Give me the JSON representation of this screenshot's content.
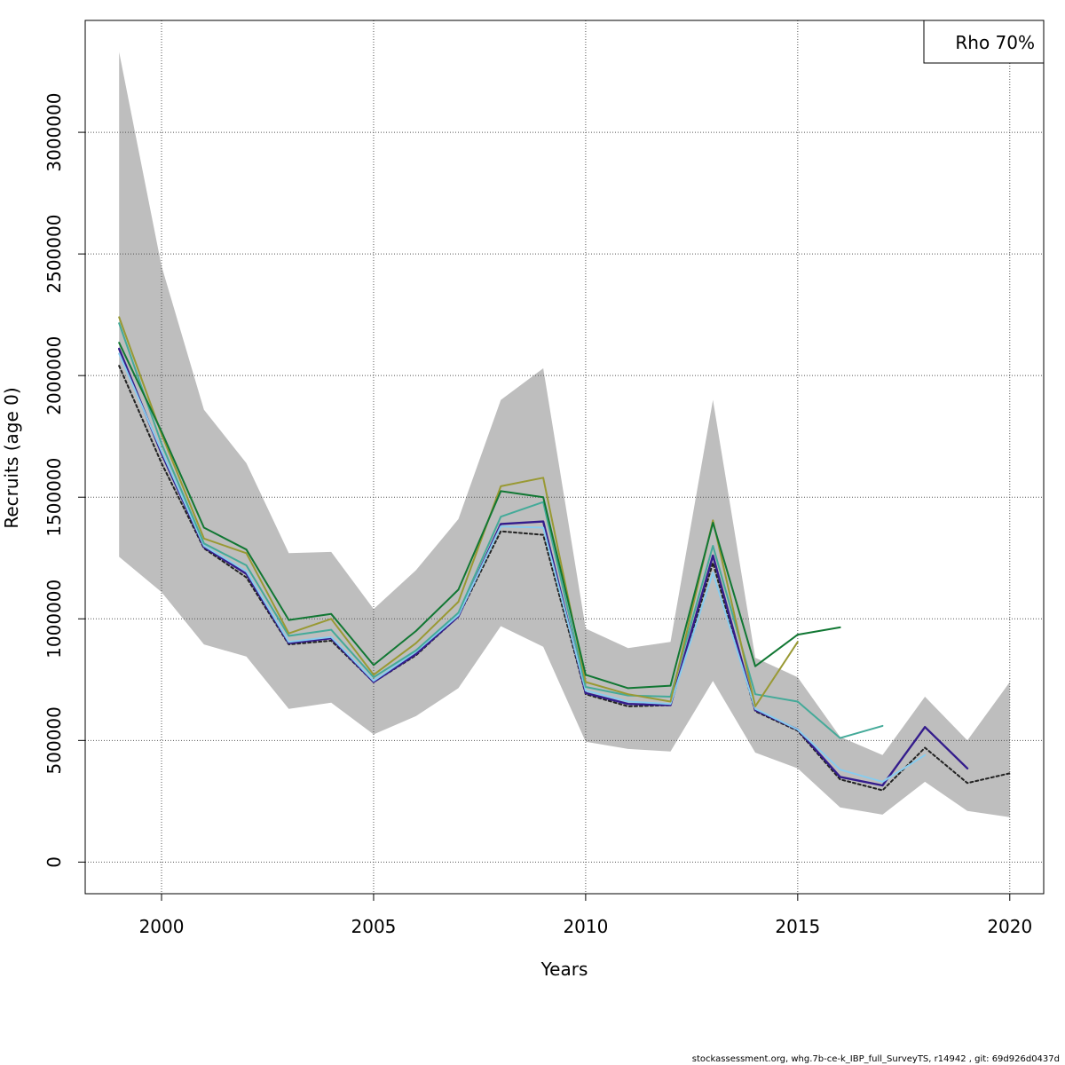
{
  "chart_data": {
    "type": "line",
    "xlabel": "Years",
    "ylabel": "Recruits (age 0)",
    "xlim": [
      1998.2,
      2020.8
    ],
    "ylim": [
      -130000,
      3460000
    ],
    "x_ticks": [
      2000,
      2005,
      2010,
      2015,
      2020
    ],
    "y_ticks": [
      0,
      500000,
      1000000,
      1500000,
      2000000,
      2500000,
      3000000
    ],
    "grid": true,
    "legend": {
      "position": "top-right",
      "text": "Rho 70%"
    },
    "confidence_band": {
      "color": "#bebebe",
      "x": [
        1999,
        2000,
        2001,
        2002,
        2003,
        2004,
        2005,
        2006,
        2007,
        2008,
        2009,
        2010,
        2011,
        2012,
        2013,
        2014,
        2015,
        2016,
        2017,
        2018,
        2019,
        2020
      ],
      "upper": [
        3330000,
        2450000,
        1860000,
        1640000,
        1270000,
        1275000,
        1040000,
        1200000,
        1410000,
        1900000,
        2030000,
        960000,
        880000,
        905000,
        1900000,
        840000,
        760000,
        515000,
        440000,
        680000,
        500000,
        740000
      ],
      "lower": [
        1255000,
        1110000,
        895000,
        845000,
        630000,
        655000,
        525000,
        600000,
        715000,
        970000,
        885000,
        495000,
        465000,
        455000,
        745000,
        450000,
        385000,
        225000,
        195000,
        330000,
        210000,
        185000
      ]
    },
    "series": [
      {
        "color": "#222222",
        "dashed": true,
        "width": 2,
        "x": [
          1999,
          2000,
          2001,
          2002,
          2003,
          2004,
          2005,
          2006,
          2007,
          2008,
          2009,
          2010,
          2011,
          2012,
          2013,
          2014,
          2015,
          2016,
          2017,
          2018,
          2019,
          2020
        ],
        "values": [
          2040000,
          1640000,
          1290000,
          1170000,
          895000,
          910000,
          740000,
          850000,
          1010000,
          1360000,
          1345000,
          690000,
          640000,
          645000,
          1230000,
          620000,
          540000,
          340000,
          295000,
          470000,
          325000,
          365000
        ]
      },
      {
        "color": "#341c8c",
        "dashed": false,
        "width": 2.4,
        "x": [
          1999,
          2000,
          2001,
          2002,
          2003,
          2004,
          2005,
          2006,
          2007,
          2008,
          2009,
          2010,
          2011,
          2012,
          2013,
          2014,
          2015,
          2016,
          2017,
          2018,
          2019
        ],
        "values": [
          2110000,
          1680000,
          1295000,
          1185000,
          900000,
          920000,
          740000,
          855000,
          1010000,
          1390000,
          1400000,
          695000,
          650000,
          645000,
          1260000,
          625000,
          545000,
          350000,
          315000,
          555000,
          385000
        ]
      },
      {
        "color": "#88ccee",
        "dashed": false,
        "width": 2,
        "x": [
          1999,
          2000,
          2001,
          2002,
          2003,
          2004,
          2005,
          2006,
          2007,
          2008,
          2009,
          2010,
          2011,
          2012,
          2013,
          2014,
          2015,
          2016,
          2017,
          2018
        ],
        "values": [
          2090000,
          1690000,
          1300000,
          1195000,
          905000,
          925000,
          745000,
          865000,
          1015000,
          1380000,
          1375000,
          705000,
          660000,
          650000,
          1190000,
          630000,
          545000,
          380000,
          330000,
          440000
        ]
      },
      {
        "color": "#44aa99",
        "dashed": false,
        "width": 2,
        "x": [
          1999,
          2000,
          2001,
          2002,
          2003,
          2004,
          2005,
          2006,
          2007,
          2008,
          2009,
          2010,
          2011,
          2012,
          2013,
          2014,
          2015,
          2016,
          2017
        ],
        "values": [
          2215000,
          1720000,
          1310000,
          1220000,
          930000,
          955000,
          760000,
          870000,
          1025000,
          1420000,
          1480000,
          720000,
          685000,
          680000,
          1300000,
          690000,
          660000,
          510000,
          560000
        ]
      },
      {
        "color": "#999933",
        "dashed": false,
        "width": 2,
        "x": [
          1999,
          2000,
          2001,
          2002,
          2003,
          2004,
          2005,
          2006,
          2007,
          2008,
          2009,
          2010,
          2011,
          2012,
          2013,
          2014,
          2015
        ],
        "values": [
          2240000,
          1760000,
          1330000,
          1270000,
          940000,
          1000000,
          770000,
          900000,
          1070000,
          1545000,
          1580000,
          740000,
          690000,
          660000,
          1405000,
          640000,
          905000
        ]
      },
      {
        "color": "#117733",
        "dashed": false,
        "width": 2,
        "x": [
          1999,
          2000,
          2001,
          2002,
          2003,
          2004,
          2005,
          2006,
          2007,
          2008,
          2009,
          2010,
          2011,
          2012,
          2013,
          2014,
          2015,
          2016
        ],
        "values": [
          2135000,
          1770000,
          1375000,
          1285000,
          995000,
          1020000,
          810000,
          950000,
          1120000,
          1525000,
          1500000,
          770000,
          715000,
          725000,
          1395000,
          805000,
          935000,
          965000
        ]
      }
    ]
  },
  "footer": "stockassessment.org, whg.7b-ce-k_IBP_full_SurveyTS, r14942 , git: 69d926d0437d"
}
